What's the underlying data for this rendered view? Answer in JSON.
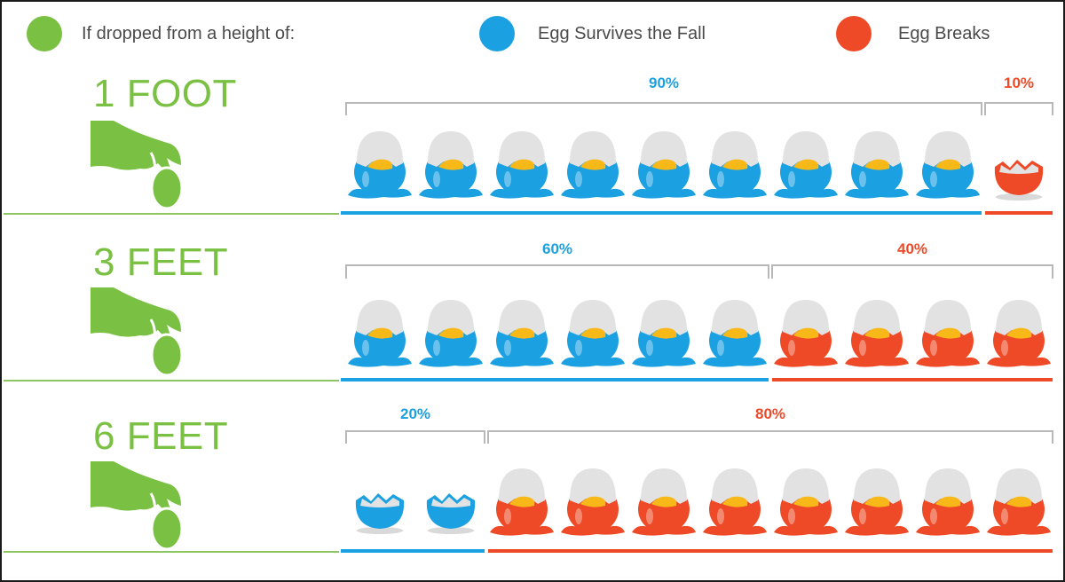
{
  "legend": {
    "height_label": "If dropped from a height of:",
    "survives_label": "Egg Survives the Fall",
    "breaks_label": "Egg Breaks"
  },
  "colors": {
    "green": "#7ac143",
    "blue": "#1ba1e2",
    "red": "#ee4a27",
    "yolk": "#f7b818",
    "shell": "#e2e2e2"
  },
  "rows": [
    {
      "height": "1 FOOT",
      "survive_pct": "90%",
      "break_pct": "10%"
    },
    {
      "height": "3 FEET",
      "survive_pct": "60%",
      "break_pct": "40%"
    },
    {
      "height": "6 FEET",
      "survive_pct": "20%",
      "break_pct": "80%"
    }
  ],
  "chart_data": {
    "type": "bar",
    "title": "If dropped from a height of:",
    "categories": [
      "1 FOOT",
      "3 FEET",
      "6 FEET"
    ],
    "series": [
      {
        "name": "Egg Survives the Fall",
        "values": [
          90,
          60,
          20
        ]
      },
      {
        "name": "Egg Breaks",
        "values": [
          10,
          40,
          80
        ]
      }
    ],
    "unit": "%",
    "eggs_per_row": 10,
    "ylim": [
      0,
      100
    ]
  }
}
